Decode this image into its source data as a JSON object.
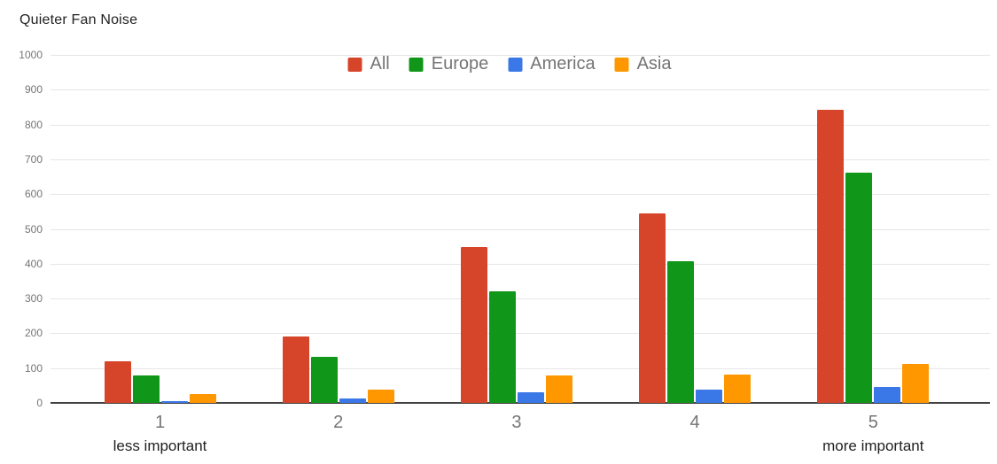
{
  "title": "Quieter Fan Noise",
  "chart_data": {
    "type": "bar",
    "title": "Quieter Fan Noise",
    "categories": [
      "1",
      "2",
      "3",
      "4",
      "5"
    ],
    "category_sublabels": [
      {
        "category": "1",
        "label": "less important"
      },
      {
        "category": "5",
        "label": "more important"
      }
    ],
    "series": [
      {
        "name": "All",
        "color": "#d6452a",
        "values": [
          120,
          190,
          447,
          545,
          843
        ]
      },
      {
        "name": "Europe",
        "color": "#109618",
        "values": [
          80,
          133,
          320,
          408,
          662
        ]
      },
      {
        "name": "America",
        "color": "#3b78e7",
        "values": [
          6,
          12,
          30,
          38,
          46
        ]
      },
      {
        "name": "Asia",
        "color": "#ff9800",
        "values": [
          25,
          37,
          79,
          82,
          113
        ]
      }
    ],
    "ylim": [
      0,
      1000
    ],
    "ytick_step": 100,
    "ytick_labels": [
      "0",
      "100",
      "200",
      "300",
      "400",
      "500",
      "600",
      "700",
      "800",
      "900",
      "1000"
    ],
    "grid": true,
    "legend_position": "top-center",
    "legend_entries": [
      "All",
      "Europe",
      "America",
      "Asia"
    ]
  }
}
